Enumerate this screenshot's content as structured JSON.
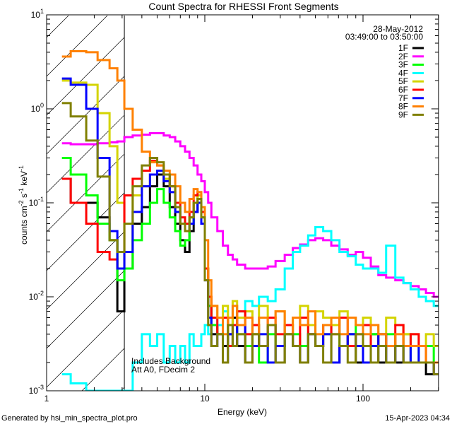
{
  "chart_data": {
    "type": "line",
    "title": "Count Spectra for RHESSI Front Segments",
    "xlabel": "Energy (keV)",
    "ylabel": {
      "base": "counts cm",
      "e1": "-2",
      "mid": " s",
      "e2": "-1",
      "mid2": " keV",
      "e3": "-1"
    },
    "xscale": "log",
    "yscale": "log",
    "xlim": [
      1,
      300
    ],
    "ylim": [
      0.001,
      10
    ],
    "xtick_labels": [
      {
        "value": 1,
        "label": "1"
      },
      {
        "value": 10,
        "label": "10"
      },
      {
        "value": 100,
        "label": "100"
      }
    ],
    "ytick_labels": [
      {
        "value": 10,
        "base": "10",
        "exp": "1"
      },
      {
        "value": 1,
        "base": "10",
        "exp": "0"
      },
      {
        "value": 0.1,
        "base": "10",
        "exp": "-1"
      },
      {
        "value": 0.01,
        "base": "10",
        "exp": "-2"
      },
      {
        "value": 0.001,
        "base": "10",
        "exp": "-3"
      }
    ],
    "date": "28-May-2012",
    "time_range": "03:49:00 to 03:50:00",
    "hatched_region_keV": [
      1,
      3.1
    ],
    "annotation": [
      "Includes Background",
      "Att A0, FDecim 2"
    ],
    "bin_edges_keV": [
      1.25,
      1.42,
      1.78,
      2.1,
      2.5,
      2.8,
      3.1,
      3.5,
      4,
      4.5,
      5,
      5.5,
      6,
      6.5,
      7,
      7.5,
      8,
      8.5,
      9,
      9.5,
      10,
      10.5,
      11,
      12,
      13,
      14,
      15,
      16,
      18,
      20,
      22,
      25,
      28,
      32,
      36,
      40,
      45,
      50,
      56,
      63,
      71,
      80,
      90,
      100,
      112,
      125,
      140,
      160,
      180,
      200,
      225,
      250,
      280,
      300
    ],
    "series": [
      {
        "name": "1F",
        "color": "#000000",
        "values": [
          0.18,
          0.1,
          0.1,
          0.07,
          0.04,
          0.007,
          0.02,
          0.06,
          0.09,
          0.15,
          0.2,
          0.15,
          0.09,
          0.06,
          0.04,
          0.03,
          0.05,
          0.08,
          0.1,
          0.06,
          0.02,
          0.008,
          0.004,
          0.005,
          0.003,
          0.004,
          0.006,
          0.003,
          0.002,
          0.004,
          0.003,
          0.005,
          0.002,
          0.004,
          0.003,
          0.002,
          0.004,
          0.003,
          0.005,
          0.002,
          0.003,
          0.004,
          0.002,
          0.003,
          0.004,
          0.002,
          0.003,
          0.002,
          0.003,
          0.002,
          0.002,
          0.0015,
          0.002
        ]
      },
      {
        "name": "2F",
        "color": "#ff00ff",
        "values": [
          0.43,
          0.42,
          0.42,
          0.43,
          0.44,
          0.45,
          0.5,
          0.52,
          0.53,
          0.55,
          0.55,
          0.52,
          0.5,
          0.45,
          0.4,
          0.35,
          0.3,
          0.25,
          0.2,
          0.17,
          0.13,
          0.1,
          0.07,
          0.05,
          0.035,
          0.028,
          0.025,
          0.022,
          0.02,
          0.02,
          0.02,
          0.021,
          0.024,
          0.028,
          0.033,
          0.036,
          0.04,
          0.042,
          0.04,
          0.035,
          0.032,
          0.028,
          0.03,
          0.026,
          0.021,
          0.017,
          0.016,
          0.015,
          0.014,
          0.013,
          0.012,
          0.011,
          0.01
        ]
      },
      {
        "name": "3F",
        "color": "#00ff00",
        "values": [
          0.3,
          0.2,
          0.12,
          0.06,
          0.04,
          0.015,
          0.02,
          0.04,
          0.06,
          0.1,
          0.14,
          0.1,
          0.07,
          0.05,
          0.035,
          0.04,
          0.06,
          0.1,
          0.12,
          0.07,
          0.02,
          0.008,
          0.005,
          0.004,
          0.006,
          0.003,
          0.005,
          0.004,
          0.003,
          0.005,
          0.002,
          0.004,
          0.003,
          0.005,
          0.004,
          0.003,
          0.005,
          0.003,
          0.004,
          0.006,
          0.003,
          0.004,
          0.005,
          0.003,
          0.004,
          0.003,
          0.004,
          0.003,
          0.004,
          0.002,
          0.003,
          0.003,
          0.002
        ]
      },
      {
        "name": "4F",
        "color": "#00ffff",
        "values": [
          0.0015,
          0.0012,
          0.0009,
          0.0008,
          0.0008,
          0.0007,
          0.0009,
          0.002,
          0.004,
          0.003,
          0.004,
          0.002,
          0.003,
          0.002,
          0.003,
          0.002,
          0.004,
          0.003,
          0.003,
          0.004,
          0.005,
          0.004,
          0.006,
          0.005,
          0.007,
          0.006,
          0.008,
          0.007,
          0.009,
          0.008,
          0.01,
          0.009,
          0.012,
          0.02,
          0.03,
          0.035,
          0.045,
          0.055,
          0.05,
          0.04,
          0.03,
          0.027,
          0.022,
          0.02,
          0.02,
          0.018,
          0.035,
          0.016,
          0.014,
          0.012,
          0.01,
          0.009,
          0.008
        ]
      },
      {
        "name": "5F",
        "color": "#d4d400",
        "values": [
          2.0,
          1.9,
          1.8,
          0.9,
          0.4,
          0.1,
          0.03,
          0.12,
          0.15,
          0.2,
          0.22,
          0.18,
          0.15,
          0.08,
          0.06,
          0.05,
          0.07,
          0.1,
          0.12,
          0.08,
          0.02,
          0.01,
          0.008,
          0.006,
          0.008,
          0.005,
          0.009,
          0.006,
          0.007,
          0.005,
          0.008,
          0.006,
          0.007,
          0.005,
          0.006,
          0.008,
          0.005,
          0.007,
          0.006,
          0.005,
          0.007,
          0.006,
          0.005,
          0.006,
          0.005,
          0.004,
          0.006,
          0.005,
          0.004,
          0.004,
          0.003,
          0.004,
          0.003
        ]
      },
      {
        "name": "6F",
        "color": "#ff0000",
        "values": [
          0.18,
          0.1,
          0.06,
          0.03,
          0.025,
          0.02,
          0.12,
          0.18,
          0.22,
          0.28,
          0.25,
          0.2,
          0.15,
          0.1,
          0.07,
          0.06,
          0.08,
          0.12,
          0.13,
          0.08,
          0.02,
          0.01,
          0.006,
          0.004,
          0.006,
          0.003,
          0.005,
          0.007,
          0.004,
          0.005,
          0.003,
          0.006,
          0.004,
          0.005,
          0.003,
          0.006,
          0.004,
          0.003,
          0.005,
          0.004,
          0.006,
          0.003,
          0.004,
          0.005,
          0.003,
          0.004,
          0.003,
          0.005,
          0.003,
          0.004,
          0.003,
          0.002,
          0.002
        ]
      },
      {
        "name": "7F",
        "color": "#0000ff",
        "values": [
          2.1,
          1.8,
          1.0,
          0.3,
          0.05,
          0.02,
          0.03,
          0.08,
          0.15,
          0.2,
          0.22,
          0.17,
          0.13,
          0.08,
          0.06,
          0.05,
          0.06,
          0.08,
          0.1,
          0.06,
          0.015,
          0.006,
          0.003,
          0.004,
          0.002,
          0.004,
          0.003,
          0.005,
          0.002,
          0.003,
          0.004,
          0.002,
          0.003,
          0.004,
          0.003,
          0.002,
          0.004,
          0.003,
          0.004,
          0.002,
          0.003,
          0.004,
          0.003,
          0.002,
          0.003,
          0.004,
          0.002,
          0.003,
          0.002,
          0.003,
          0.002,
          0.002,
          0.0015
        ]
      },
      {
        "name": "8F",
        "color": "#ff8000",
        "values": [
          3.6,
          4.1,
          4.0,
          3.3,
          2.7,
          2.0,
          1.0,
          0.6,
          0.35,
          0.27,
          0.25,
          0.22,
          0.2,
          0.15,
          0.1,
          0.08,
          0.11,
          0.14,
          0.13,
          0.09,
          0.04,
          0.015,
          0.008,
          0.006,
          0.004,
          0.006,
          0.008,
          0.005,
          0.006,
          0.004,
          0.006,
          0.005,
          0.007,
          0.004,
          0.006,
          0.005,
          0.007,
          0.004,
          0.005,
          0.006,
          0.004,
          0.006,
          0.005,
          0.004,
          0.005,
          0.004,
          0.003,
          0.004,
          0.003,
          0.003,
          0.003,
          0.002,
          0.002
        ]
      },
      {
        "name": "9F",
        "color": "#808000",
        "values": [
          1.15,
          0.83,
          0.46,
          0.19,
          0.04,
          0.03,
          0.06,
          0.15,
          0.25,
          0.3,
          0.27,
          0.2,
          0.15,
          0.09,
          0.06,
          0.05,
          0.07,
          0.1,
          0.11,
          0.07,
          0.015,
          0.005,
          0.003,
          0.004,
          0.002,
          0.005,
          0.003,
          0.004,
          0.002,
          0.004,
          0.003,
          0.005,
          0.002,
          0.004,
          0.003,
          0.002,
          0.004,
          0.003,
          0.002,
          0.004,
          0.003,
          0.002,
          0.004,
          0.003,
          0.002,
          0.003,
          0.002,
          0.003,
          0.002,
          0.002,
          0.002,
          0.002,
          0.0015
        ]
      }
    ]
  },
  "footer": {
    "generated_by": "Generated by hsi_min_spectra_plot.pro",
    "timestamp": "15-Apr-2023 04:34"
  }
}
